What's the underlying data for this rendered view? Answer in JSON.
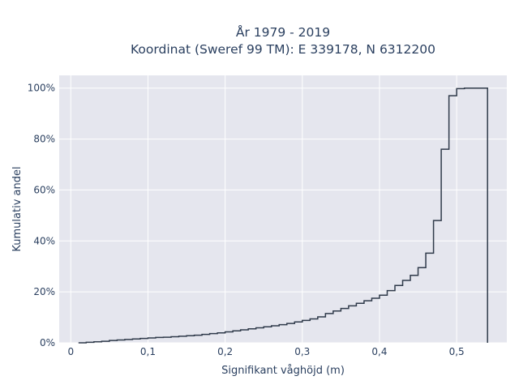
{
  "chart_data": {
    "type": "line",
    "subtype": "step-ecdf",
    "title_line1": "År 1979 - 2019",
    "title_line2": "Koordinat (Sweref 99 TM): E 339178, N 6312200",
    "xlabel": "Signifikant våghöjd (m)",
    "ylabel": "Kumulativ andel",
    "xlim": [
      -0.015,
      0.565
    ],
    "ylim": [
      0,
      1.05
    ],
    "grid": true,
    "x_ticks": [
      0,
      0.1,
      0.2,
      0.3,
      0.4,
      0.5
    ],
    "x_tick_labels": [
      "0",
      "0,1",
      "0,2",
      "0,3",
      "0,4",
      "0,5"
    ],
    "y_ticks": [
      0,
      0.2,
      0.4,
      0.6,
      0.8,
      1.0
    ],
    "y_tick_labels": [
      "0%",
      "20%",
      "40%",
      "60%",
      "80%",
      "100%"
    ],
    "series": [
      {
        "color": "#2f3a4a",
        "x": [
          0.01,
          0.02,
          0.03,
          0.04,
          0.05,
          0.06,
          0.07,
          0.08,
          0.09,
          0.1,
          0.11,
          0.12,
          0.13,
          0.14,
          0.15,
          0.16,
          0.17,
          0.18,
          0.19,
          0.2,
          0.21,
          0.22,
          0.23,
          0.24,
          0.25,
          0.26,
          0.27,
          0.28,
          0.29,
          0.3,
          0.31,
          0.32,
          0.33,
          0.34,
          0.35,
          0.36,
          0.37,
          0.38,
          0.39,
          0.4,
          0.41,
          0.42,
          0.43,
          0.44,
          0.45,
          0.46,
          0.47,
          0.48,
          0.49,
          0.5,
          0.51,
          0.52,
          0.53,
          0.54
        ],
        "y": [
          0.0,
          0.002,
          0.004,
          0.006,
          0.009,
          0.011,
          0.013,
          0.015,
          0.017,
          0.019,
          0.021,
          0.022,
          0.024,
          0.026,
          0.028,
          0.03,
          0.033,
          0.036,
          0.039,
          0.043,
          0.047,
          0.051,
          0.055,
          0.059,
          0.063,
          0.067,
          0.071,
          0.076,
          0.082,
          0.088,
          0.094,
          0.102,
          0.115,
          0.125,
          0.135,
          0.145,
          0.155,
          0.165,
          0.175,
          0.187,
          0.205,
          0.225,
          0.245,
          0.265,
          0.295,
          0.352,
          0.48,
          0.76,
          0.97,
          0.998,
          1.0,
          1.0,
          1.0,
          0.0
        ]
      }
    ]
  }
}
